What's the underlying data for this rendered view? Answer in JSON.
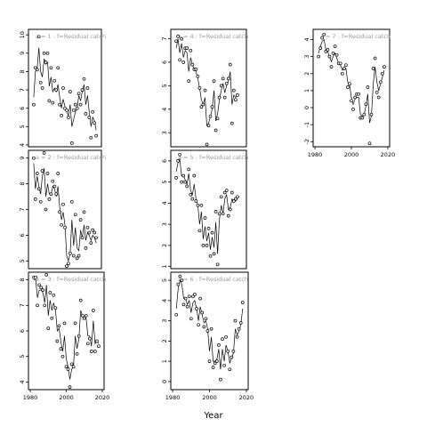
{
  "chart_data": {
    "type": "line",
    "xlabel": "Year",
    "ylabel": "",
    "panels": [
      {
        "label": "a = 1 : f=Residual catch",
        "x_ticks": [
          1980,
          2000,
          2020
        ],
        "y_ticks": [
          4,
          5,
          6,
          7,
          8,
          9,
          10
        ],
        "xlim": [
          1979,
          2021
        ],
        "ylim": [
          3.9,
          10.3
        ],
        "years": [
          1982,
          1983,
          1984,
          1985,
          1986,
          1987,
          1988,
          1989,
          1990,
          1991,
          1992,
          1993,
          1994,
          1995,
          1996,
          1997,
          1998,
          1999,
          2000,
          2001,
          2002,
          2003,
          2004,
          2005,
          2006,
          2007,
          2008,
          2009,
          2010,
          2011,
          2012,
          2013,
          2014,
          2015,
          2016,
          2017,
          2018
        ],
        "observed": [
          6.2,
          8.2,
          8.1,
          9.9,
          7.4,
          7.1,
          9.0,
          8.5,
          9.0,
          6.4,
          8.2,
          6.3,
          7.5,
          7.0,
          8.2,
          6.2,
          5.6,
          7.1,
          6.0,
          5.9,
          5.5,
          6.9,
          4.1,
          5.9,
          6.2,
          6.0,
          6.8,
          6.2,
          7.0,
          7.6,
          5.7,
          7.1,
          5.5,
          4.4,
          5.8,
          5.2,
          4.5
        ],
        "fitted": [
          6.6,
          8.0,
          8.2,
          9.3,
          8.0,
          7.7,
          8.7,
          8.4,
          8.5,
          7.2,
          7.7,
          6.9,
          7.1,
          6.9,
          7.3,
          6.6,
          6.0,
          6.5,
          6.1,
          5.8,
          5.6,
          6.2,
          5.0,
          5.4,
          5.8,
          6.0,
          6.7,
          6.4,
          6.9,
          7.3,
          6.2,
          6.7,
          5.8,
          5.0,
          5.5,
          5.3,
          4.8
        ]
      },
      {
        "label": "a = 4 : f=Residual catch",
        "x_ticks": [
          1980,
          2000,
          2020
        ],
        "y_ticks": [
          3,
          4,
          5,
          6,
          7
        ],
        "xlim": [
          1979,
          2021
        ],
        "ylim": [
          2.4,
          7.4
        ],
        "years": [
          1982,
          1983,
          1984,
          1985,
          1986,
          1987,
          1988,
          1989,
          1990,
          1991,
          1992,
          1993,
          1994,
          1995,
          1996,
          1997,
          1998,
          1999,
          2000,
          2001,
          2002,
          2003,
          2004,
          2005,
          2006,
          2007,
          2008,
          2009,
          2010,
          2011,
          2012,
          2013,
          2014,
          2015,
          2016
        ],
        "observed": [
          6.9,
          7.1,
          6.1,
          7.0,
          6.0,
          6.6,
          6.6,
          5.2,
          6.5,
          5.9,
          5.7,
          5.7,
          5.4,
          4.9,
          4.1,
          4.2,
          4.8,
          2.5,
          3.3,
          3.7,
          4.1,
          5.2,
          3.1,
          3.6,
          4.5,
          5.0,
          5.3,
          4.5,
          5.1,
          5.3,
          5.9,
          3.4,
          4.8,
          4.4,
          4.6
        ],
        "fitted": [
          6.6,
          7.0,
          6.4,
          6.8,
          6.2,
          6.5,
          6.4,
          5.6,
          6.2,
          5.9,
          5.7,
          5.6,
          5.3,
          4.9,
          4.4,
          4.2,
          4.5,
          3.3,
          3.4,
          3.7,
          4.0,
          4.8,
          3.5,
          3.8,
          4.4,
          4.8,
          5.1,
          4.7,
          5.0,
          5.2,
          5.6,
          4.2,
          4.6,
          4.5,
          4.6
        ]
      },
      {
        "label": "a = 7 : f=Residual catch",
        "x_ticks": [
          1980,
          2000,
          2020
        ],
        "y_ticks": [
          -2,
          -1,
          0,
          1,
          2,
          3,
          4
        ],
        "xlim": [
          1979,
          2021
        ],
        "ylim": [
          -2.3,
          4.6
        ],
        "years": [
          1982,
          1983,
          1984,
          1985,
          1986,
          1987,
          1988,
          1989,
          1990,
          1991,
          1992,
          1993,
          1994,
          1995,
          1996,
          1997,
          1998,
          1999,
          2000,
          2001,
          2002,
          2003,
          2004,
          2005,
          2006,
          2007,
          2008,
          2009,
          2010,
          2011,
          2012,
          2013,
          2014,
          2015,
          2016,
          2017,
          2018
        ],
        "observed": [
          3.0,
          3.5,
          4.1,
          4.3,
          3.3,
          3.4,
          3.0,
          2.4,
          3.2,
          3.6,
          3.1,
          2.6,
          2.6,
          2.0,
          2.3,
          2.5,
          1.2,
          1.4,
          0.4,
          -0.1,
          0.6,
          0.8,
          0.8,
          -0.6,
          -0.6,
          -0.4,
          0.2,
          1.2,
          -2.1,
          -0.4,
          2.3,
          2.9,
          0.9,
          0.6,
          1.5,
          2.0,
          2.4
        ],
        "fitted": [
          3.2,
          3.6,
          3.9,
          4.0,
          3.4,
          3.3,
          3.0,
          2.7,
          3.0,
          3.2,
          2.9,
          2.6,
          2.5,
          2.2,
          2.3,
          2.3,
          1.5,
          1.3,
          0.6,
          0.2,
          0.5,
          0.6,
          0.6,
          -0.4,
          -0.5,
          -0.4,
          0.1,
          0.8,
          -0.9,
          -0.5,
          1.4,
          2.4,
          1.5,
          1.0,
          1.4,
          1.8,
          2.2
        ]
      },
      {
        "label": "a = 2 : f=Residual catch",
        "x_ticks": [
          1980,
          2000,
          2020
        ],
        "y_ticks": [
          5,
          6,
          7,
          8,
          9
        ],
        "xlim": [
          1979,
          2021
        ],
        "ylim": [
          4.7,
          9.3
        ],
        "years": [
          1982,
          1983,
          1984,
          1985,
          1986,
          1987,
          1988,
          1989,
          1990,
          1991,
          1992,
          1993,
          1994,
          1995,
          1996,
          1997,
          1998,
          1999,
          2000,
          2001,
          2002,
          2003,
          2004,
          2005,
          2006,
          2007,
          2008,
          2009,
          2010,
          2011,
          2012,
          2013,
          2014,
          2015,
          2016,
          2017,
          2018
        ],
        "observed": [
          9.0,
          7.4,
          8.4,
          7.8,
          7.3,
          8.5,
          9.2,
          7.0,
          8.4,
          7.4,
          7.6,
          8.1,
          7.9,
          7.6,
          8.4,
          6.9,
          6.4,
          7.2,
          6.3,
          4.8,
          4.9,
          5.3,
          7.3,
          5.2,
          6.8,
          5.1,
          5.2,
          6.6,
          5.9,
          6.9,
          5.5,
          6.3,
          6.1,
          5.7,
          6.2,
          6.1,
          5.9
        ],
        "fitted": [
          8.8,
          7.8,
          8.3,
          7.9,
          7.6,
          8.3,
          8.6,
          7.5,
          8.0,
          7.6,
          7.6,
          7.9,
          7.8,
          7.5,
          7.9,
          7.1,
          6.6,
          6.9,
          6.4,
          5.2,
          5.0,
          5.3,
          6.6,
          5.6,
          6.3,
          5.5,
          5.4,
          6.2,
          5.9,
          6.4,
          5.8,
          6.1,
          6.0,
          5.8,
          6.0,
          5.9,
          5.7
        ]
      },
      {
        "label": "a = 5 : f=Residual catch",
        "x_ticks": [
          1980,
          2000,
          2020
        ],
        "y_ticks": [
          1,
          2,
          3,
          4,
          5,
          6
        ],
        "xlim": [
          1979,
          2021
        ],
        "ylim": [
          0.9,
          6.5
        ],
        "years": [
          1982,
          1983,
          1984,
          1985,
          1986,
          1987,
          1988,
          1989,
          1990,
          1991,
          1992,
          1993,
          1994,
          1995,
          1996,
          1997,
          1998,
          1999,
          2000,
          2001,
          2002,
          2003,
          2004,
          2005,
          2006,
          2007,
          2008,
          2009,
          2010,
          2011,
          2012,
          2013,
          2014,
          2015,
          2016
        ],
        "observed": [
          5.2,
          6.0,
          6.3,
          5.0,
          5.3,
          5.0,
          4.8,
          5.6,
          4.4,
          4.2,
          5.3,
          4.1,
          3.9,
          2.7,
          3.9,
          2.0,
          3.3,
          2.0,
          2.8,
          1.5,
          2.6,
          1.6,
          3.6,
          1.1,
          3.5,
          4.3,
          3.5,
          4.5,
          4.6,
          3.4,
          3.7,
          4.5,
          4.1,
          4.2,
          4.3
        ],
        "fitted": [
          5.5,
          5.9,
          6.1,
          5.3,
          5.3,
          5.1,
          4.9,
          5.4,
          4.6,
          4.4,
          4.9,
          4.2,
          3.9,
          3.0,
          3.6,
          2.3,
          2.9,
          2.2,
          2.6,
          1.8,
          2.4,
          1.9,
          3.1,
          1.6,
          3.2,
          3.9,
          3.5,
          4.2,
          4.4,
          3.7,
          3.8,
          4.2,
          4.1,
          4.1,
          4.2
        ]
      },
      {
        "label": "a = 6 : f=Residual catch",
        "x_ticks": [
          1980,
          2000,
          2020
        ],
        "y_ticks": [
          0,
          1,
          2,
          3,
          4,
          5
        ],
        "xlim": [
          1979,
          2021
        ],
        "ylim": [
          -0.4,
          5.4
        ],
        "years": [
          1982,
          1983,
          1984,
          1985,
          1986,
          1987,
          1988,
          1989,
          1990,
          1991,
          1992,
          1993,
          1994,
          1995,
          1996,
          1997,
          1998,
          1999,
          2000,
          2001,
          2002,
          2003,
          2004,
          2005,
          2006,
          2007,
          2008,
          2009,
          2010,
          2011,
          2012,
          2013,
          2014,
          2015,
          2016,
          2017,
          2018
        ],
        "observed": [
          3.3,
          4.8,
          5.2,
          5.0,
          3.8,
          4.1,
          3.7,
          4.2,
          3.1,
          4.2,
          4.3,
          3.6,
          2.8,
          4.1,
          3.4,
          2.7,
          3.1,
          2.5,
          1.0,
          2.6,
          0.7,
          0.9,
          1.0,
          1.8,
          0.1,
          2.1,
          0.8,
          2.2,
          1.5,
          0.6,
          1.2,
          1.5,
          3.0,
          2.2,
          2.6,
          2.9,
          3.9
        ],
        "fitted": [
          3.6,
          4.6,
          5.0,
          4.8,
          4.1,
          4.1,
          3.8,
          4.0,
          3.4,
          3.9,
          4.0,
          3.6,
          3.0,
          3.7,
          3.3,
          2.9,
          3.0,
          2.6,
          1.5,
          2.2,
          1.0,
          1.0,
          1.1,
          1.6,
          0.6,
          1.6,
          1.0,
          1.8,
          1.5,
          0.9,
          1.2,
          1.4,
          2.6,
          2.3,
          2.5,
          2.8,
          3.6
        ]
      },
      {
        "label": "a = 3 : f=Residual catch",
        "x_ticks": [
          1980,
          2000,
          2020
        ],
        "y_ticks": [
          4,
          5,
          6,
          7,
          8
        ],
        "xlim": [
          1979,
          2021
        ],
        "ylim": [
          3.7,
          8.3
        ],
        "years": [
          1982,
          1983,
          1984,
          1985,
          1986,
          1987,
          1988,
          1989,
          1990,
          1991,
          1992,
          1993,
          1994,
          1995,
          1996,
          1997,
          1998,
          1999,
          2000,
          2001,
          2002,
          2003,
          2004,
          2005,
          2006,
          2007,
          2008,
          2009,
          2010,
          2011,
          2012,
          2013,
          2014,
          2015,
          2016,
          2017,
          2018
        ],
        "observed": [
          8.1,
          8.1,
          7.0,
          7.8,
          7.7,
          7.6,
          7.0,
          8.2,
          6.1,
          7.5,
          6.5,
          7.4,
          6.9,
          5.6,
          6.2,
          5.3,
          5.0,
          6.3,
          4.6,
          4.5,
          3.8,
          4.7,
          4.6,
          6.3,
          5.1,
          5.8,
          7.2,
          6.6,
          6.5,
          6.6,
          5.5,
          5.7,
          5.2,
          6.8,
          5.2,
          5.6,
          5.4
        ],
        "fitted": [
          8.0,
          8.0,
          7.3,
          7.6,
          7.6,
          7.5,
          7.1,
          7.8,
          6.6,
          7.2,
          6.8,
          7.1,
          6.8,
          6.0,
          6.1,
          5.6,
          5.2,
          5.8,
          4.9,
          4.6,
          4.1,
          4.5,
          4.6,
          5.8,
          5.3,
          5.7,
          6.8,
          6.6,
          6.5,
          6.5,
          5.8,
          5.8,
          5.4,
          6.4,
          5.5,
          5.6,
          5.5
        ]
      }
    ]
  }
}
